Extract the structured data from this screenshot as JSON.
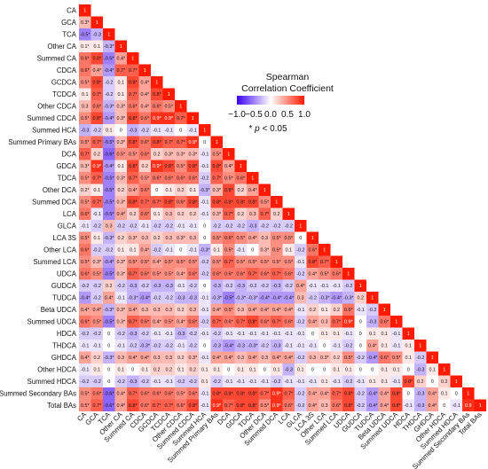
{
  "chart_data": {
    "type": "heatmap",
    "title": "",
    "xlabel": "",
    "ylabel": "",
    "variables": [
      "CA",
      "GCA",
      "TCA",
      "Other CA",
      "Summed CA",
      "CDCA",
      "GCDCA",
      "TCDCA",
      "Other CDCA",
      "Summed CDCA",
      "Summed HCA",
      "Summed Primary BAs",
      "DCA",
      "GDCA",
      "TDCA",
      "Other DCA",
      "Summed DCA",
      "LCA",
      "GLCA",
      "LCA 3S",
      "Other LCA",
      "Summed LCA",
      "UDCA",
      "GUDCA",
      "TUDCA",
      "Beta UDCA",
      "Summed UDCA",
      "HDCA",
      "THDCA",
      "GHDCA",
      "Other HDCA",
      "Summed HDCA",
      "Summed Secondary BAs",
      "Total BAs"
    ],
    "lower_triangle_values": [
      [
        "1"
      ],
      [
        "0.3*",
        "1"
      ],
      [
        "-0.5*",
        "-0.3",
        "1"
      ],
      [
        "0.1*",
        "0.1",
        "-0.3*",
        "1"
      ],
      [
        "0.6*",
        "0.8*",
        "-0.5*",
        "0.4*",
        "1"
      ],
      [
        "0.6*",
        "0.4*",
        "-0.4*",
        "0.7*",
        "0.7*",
        "1"
      ],
      [
        "0.5*",
        "0.8*",
        "-0.2",
        "0.1",
        "0.8*",
        "0.4*",
        "1"
      ],
      [
        "0.1",
        "0.7*",
        "-0.2",
        "0.1",
        "0.7*",
        "0.4*",
        "0.8*",
        "1"
      ],
      [
        "0.3",
        "0.6*",
        "-0.3*",
        "0.3*",
        "0.6*",
        "0.4*",
        "0.6*",
        "0.5*",
        "1"
      ],
      [
        "0.5*",
        "0.8*",
        "-0.4*",
        "0.3*",
        "0.8*",
        "0.6*",
        "0.9*",
        "0.9*",
        "0.7*",
        "1"
      ],
      [
        "-0.3",
        "-0.2",
        "0.1",
        "0",
        "-0.3",
        "-0.2",
        "-0.1",
        "-0.1",
        "0",
        "-0.1",
        "1"
      ],
      [
        "0.5*",
        "0.7*",
        "-0.5*",
        "0.3*",
        "0.8*",
        "0.6*",
        "0.8*",
        "0.7*",
        "0.7*",
        "0.9*",
        "0",
        "1"
      ],
      [
        "0.7*",
        "0.2",
        "-0.6*",
        "0.5*",
        "0.5*",
        "0.6*",
        "0.2",
        "0.3*",
        "0.3*",
        "0.3*",
        "-0.1",
        "0.5*",
        "1"
      ],
      [
        "0.3*",
        "0.9*",
        "-0.4*",
        "0.1",
        "0.8*",
        "0.2",
        "0.9*",
        "0.8*",
        "0.5*",
        "0.8*",
        "-0.1",
        "0.8*",
        "0.4*",
        "1"
      ],
      [
        "0.5*",
        "0.7*",
        "-0.5*",
        "0.3*",
        "0.7*",
        "0.5*",
        "0.6*",
        "0.6*",
        "0.6*",
        "0.6*",
        "-0.2",
        "0.7*",
        "0.5*",
        "0.6*",
        "1"
      ],
      [
        "0.2*",
        "0.1",
        "-0.5*",
        "0.2",
        "0.4*",
        "0.6*",
        "0",
        "0.1",
        "0.2",
        "0.1",
        "-0.3*",
        "0.3*",
        "0.8*",
        "0.2",
        "0.4*",
        "1"
      ],
      [
        "0.5*",
        "0.7*",
        "-0.5*",
        "0.3*",
        "0.8*",
        "0.7*",
        "0.7*",
        "0.8*",
        "0.6*",
        "0.8*",
        "-0.1",
        "0.8*",
        "0.8*",
        "0.8*",
        "0.8*",
        "0.5*",
        "1"
      ],
      [
        "0.6*",
        "-0.1",
        "-0.5*",
        "0.4*",
        "0.2",
        "0.6*",
        "0.1",
        "0.3",
        "0.2",
        "0.2",
        "-0.1",
        "0.3*",
        "0.7*",
        "0.2",
        "0.3",
        "0.7*",
        "0.2",
        "1"
      ],
      [
        "-0.1",
        "-0.2",
        "0.3",
        "-0.2",
        "-0.2",
        "-0.1",
        "-0.2",
        "-0.2",
        "-0.1",
        "-0.1",
        "0",
        "-0.2",
        "-0.2",
        "-0.2",
        "-0.3",
        "-0.2",
        "-0.2",
        "-0.2",
        "1"
      ],
      [
        "0.5*",
        "0.1",
        "-0.3*",
        "0.2",
        "0.3*",
        "0.3",
        "0.2",
        "0.3",
        "0.3*",
        "0.3",
        "0",
        "0.5*",
        "0.6*",
        "0.5*",
        "0.4*",
        "0.3",
        "0.5*",
        "0.5*",
        "0",
        "1"
      ],
      [
        "0.6*",
        "-0.2",
        "-0.2",
        "0.1",
        "0.1",
        "0.4*",
        "-0.2",
        "-0.1",
        "0",
        "-0.1",
        "-0.3*",
        "0.1",
        "0.5*",
        "-0.1",
        "0",
        "0.3*",
        "0.5*",
        "0.1",
        "-0.2",
        "0.6*",
        "1"
      ],
      [
        "0.5*",
        "0.3*",
        "-0.4*",
        "0.3*",
        "0.5*",
        "0.5*",
        "0.4*",
        "0.5*",
        "0.5*",
        "0.5*",
        "-0.2",
        "0.5*",
        "0.7*",
        "0.5*",
        "0.5*",
        "0.5*",
        "0.5*",
        "0.5*",
        "-0.1",
        "0.8*",
        "0.7*",
        "1"
      ],
      [
        "0.6*",
        "0.5*",
        "-0.5*",
        "0.3*",
        "0.7*",
        "0.6*",
        "0.5*",
        "0.5*",
        "0.4*",
        "0.6*",
        "-0.2",
        "0.6*",
        "0.6*",
        "0.6*",
        "0.7*",
        "0.6*",
        "0.7*",
        "0.6*",
        "-0.2",
        "0.4*",
        "0.5*",
        "0.6*",
        "1"
      ],
      [
        "-0.2",
        "-0.2",
        "0.2",
        "-0.2",
        "-0.3",
        "-0.2",
        "-0.3",
        "-0.3",
        "-0.1",
        "-0.2",
        "0",
        "-0.3",
        "-0.2",
        "-0.3",
        "-0.2",
        "-0.2",
        "-0.3",
        "-0.2",
        "0.4*",
        "-0.1",
        "-0.1",
        "-0.1",
        "-0.2",
        "1"
      ],
      [
        "-0.4*",
        "-0.2",
        "0.4*",
        "-0.1",
        "-0.3*",
        "-0.4*",
        "-0.2",
        "-0.2",
        "-0.3",
        "-0.3",
        "-0.1",
        "-0.3*",
        "-0.5*",
        "-0.3*",
        "-0.3*",
        "-0.4*",
        "-0.4*",
        "-0.4*",
        "0.3",
        "-0.2",
        "-0.3*",
        "-0.4*",
        "-0.3*",
        "0.2",
        "1"
      ],
      [
        "0.4*",
        "0.4*",
        "-0.3*",
        "0.3*",
        "0.4*",
        "0.3",
        "0.3",
        "0.3",
        "0.2",
        "0.3",
        "-0.1",
        "0.4*",
        "0.5*",
        "0.3",
        "0.4*",
        "0.4*",
        "0.4*",
        "0.4*",
        "-0.1",
        "0.2",
        "0.1",
        "0.2",
        "0.6*",
        "-0.1",
        "-0.2",
        "1"
      ],
      [
        "0.6*",
        "0.5*",
        "-0.5*",
        "0.3*",
        "0.7*",
        "0.6*",
        "0.4*",
        "0.5*",
        "0.4*",
        "0.6*",
        "-0.2",
        "0.7*",
        "0.6*",
        "0.7*",
        "0.8*",
        "0.6*",
        "0.7*",
        "0.6*",
        "-0.2",
        "0.4*",
        "0.3",
        "0.7*",
        "0.9*",
        "0",
        "-0.3",
        "0.6*",
        "1"
      ],
      [
        "-0.2",
        "-0.2",
        "0",
        "-0.2",
        "-0.3",
        "-0.2",
        "-0.1",
        "-0.1",
        "-0.3",
        "-0.2",
        "-0.1",
        "-0.2",
        "-0.1",
        "-0.1",
        "-0.1",
        "-0.1",
        "-0.1",
        "-0.1",
        "-0.1",
        "0",
        "0.1",
        "0.1",
        "-0.1",
        "0",
        "0.1",
        "0.1",
        "-0.1",
        "1"
      ],
      [
        "-0.1",
        "-0.1",
        "0",
        "-0.1",
        "-0.2",
        "-0.3*",
        "-0.2",
        "-0.2",
        "-0.1",
        "-0.2",
        "0",
        "-0.3",
        "-0.4*",
        "-0.3",
        "-0.3*",
        "-0.2",
        "-0.3",
        "-0.1",
        "-0.1",
        "-0.1",
        "0",
        "-0.1",
        "-0.2",
        "0",
        "0.4*",
        "0.1",
        "-0.1",
        "0.1",
        "1"
      ],
      [
        "0.4*",
        "0.2",
        "-0.3*",
        "0.3",
        "0.4*",
        "0.4*",
        "0.3",
        "0.3",
        "0.2",
        "0.3*",
        "-0.1",
        "0.4*",
        "0.4*",
        "0.3",
        "0.4*",
        "0.3",
        "0.4*",
        "0.4*",
        "-0.2",
        "0.3",
        "0.3*",
        "0.2",
        "0.5*",
        "-0.2",
        "-0.4*",
        "0.6*",
        "0.5*",
        "0.1",
        "-0.2",
        "1"
      ],
      [
        "-0.1",
        "0.1",
        "0",
        "0.1",
        "0",
        "0.1",
        "0.2",
        "0.2",
        "0.1",
        "0.2",
        "0.1",
        "0.1",
        "0",
        "0.1",
        "0.1",
        "0",
        "0.1",
        "-0.3",
        "0.1",
        "0",
        "0",
        "0.1",
        "0.1",
        "0",
        "0",
        "0.1",
        "0.1",
        "0",
        "-0.3",
        "0.1",
        "1"
      ],
      [
        "-0.2",
        "-0.2",
        "0",
        "-0.2",
        "-0.3",
        "-0.2",
        "-0.1",
        "-0.1",
        "-0.2",
        "-0.2",
        "0.1",
        "-0.2",
        "-0.1",
        "-0.1",
        "-0.1",
        "-0.1",
        "-0.2",
        "-0.1",
        "-0.1",
        "-0.1",
        "0.1",
        "-0.1",
        "-0.2",
        "-0.1",
        "0.1",
        "0.1",
        "-0.1",
        "0.8*",
        "0.2",
        "0",
        "0.2",
        "1"
      ],
      [
        "0.5*",
        "0.6*",
        "-0.6*",
        "0.4*",
        "0.7*",
        "0.6*",
        "0.6*",
        "0.6*",
        "0.5*",
        "0.6*",
        "-0.1",
        "0.8*",
        "0.8*",
        "0.8*",
        "0.8*",
        "0.7*",
        "0.9*",
        "0.7*",
        "-0.2",
        "0.4*",
        "0.4*",
        "0.7*",
        "0.8*",
        "-0.2",
        "-0.4*",
        "0.4*",
        "0.8*",
        "0",
        "-0.3",
        "0.4*",
        "0.1",
        "0",
        "1"
      ],
      [
        "0.5*",
        "0.7*",
        "-0.6*",
        "0.4*",
        "0.8*",
        "0.6*",
        "0.7*",
        "0.7*",
        "0.6*",
        "0.8*",
        "-0.1",
        "0.9*",
        "0.7*",
        "0.8*",
        "0.8*",
        "0.5*",
        "0.9*",
        "0.6*",
        "-0.2",
        "0.4*",
        "0.3",
        "0.6*",
        "0.8*",
        "-0.2",
        "-0.4*",
        "0.4*",
        "0.8*",
        "-0.1",
        "-0.3",
        "0.4*",
        "0",
        "-0.1",
        "0.9",
        "1"
      ]
    ],
    "legend": {
      "title_line1": "Spearman",
      "title_line2": "Correlation Coefficient",
      "tick_labels": [
        "−1.0",
        "−0.5",
        "0.0",
        "0.5",
        "1.0"
      ],
      "ticks": [
        -1.0,
        -0.5,
        0.0,
        0.5,
        1.0
      ],
      "note_prefix": "* ",
      "note_italic": "p",
      "note_suffix": " < 0.05",
      "placement": "top-right"
    },
    "color_scale": {
      "low": "#3b00f5",
      "mid": "#ffffff",
      "high": "#ff1a00",
      "range": [
        -1,
        1
      ]
    }
  }
}
